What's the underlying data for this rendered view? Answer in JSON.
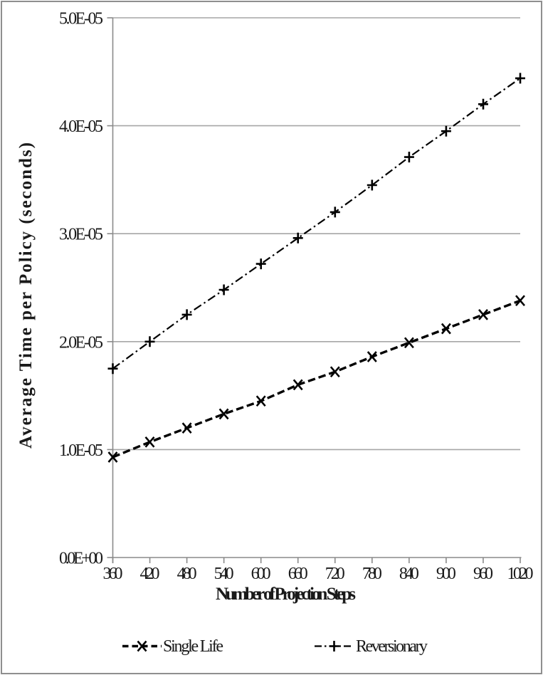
{
  "chart_data": {
    "type": "line",
    "xlabel": "Number of Projection Steps",
    "ylabel": "Average Time per Policy (seconds)",
    "x": [
      360,
      420,
      480,
      540,
      600,
      660,
      720,
      780,
      840,
      900,
      960,
      1020
    ],
    "x_tick_labels": [
      "360",
      "420",
      "480",
      "540",
      "600",
      "660",
      "720",
      "780",
      "840",
      "900",
      "960",
      "1020"
    ],
    "xlim": [
      360,
      1020
    ],
    "ylim": [
      0,
      5e-05
    ],
    "y_ticks": [
      {
        "value": 0,
        "label": "0.0E+00"
      },
      {
        "value": 1e-05,
        "label": "1.0E-05"
      },
      {
        "value": 2e-05,
        "label": "2.0E-05"
      },
      {
        "value": 3e-05,
        "label": "3.0E-05"
      },
      {
        "value": 4e-05,
        "label": "4.0E-05"
      },
      {
        "value": 5e-05,
        "label": "5.0E-05"
      }
    ],
    "grid": "horizontal",
    "legend_position": "bottom",
    "series": [
      {
        "name": "Single Life",
        "marker": "x",
        "line_style": "dashed",
        "color": "#000000",
        "values": [
          9.3e-06,
          1.07e-05,
          1.2e-05,
          1.33e-05,
          1.45e-05,
          1.6e-05,
          1.72e-05,
          1.86e-05,
          1.99e-05,
          2.12e-05,
          2.25e-05,
          2.38e-05
        ]
      },
      {
        "name": "Reversionary",
        "marker": "plus",
        "line_style": "dash-dot",
        "color": "#000000",
        "values": [
          1.75e-05,
          2e-05,
          2.25e-05,
          2.48e-05,
          2.72e-05,
          2.96e-05,
          3.2e-05,
          3.45e-05,
          3.71e-05,
          3.95e-05,
          4.2e-05,
          4.44e-05
        ]
      }
    ]
  },
  "colors": {
    "series_line": "#000000",
    "gridline": "#A6A6A6",
    "axis_line": "#8A8A8A",
    "text": "#1A1A1A",
    "frame_border": "#8E8E8E",
    "background": "#FFFFFF"
  }
}
